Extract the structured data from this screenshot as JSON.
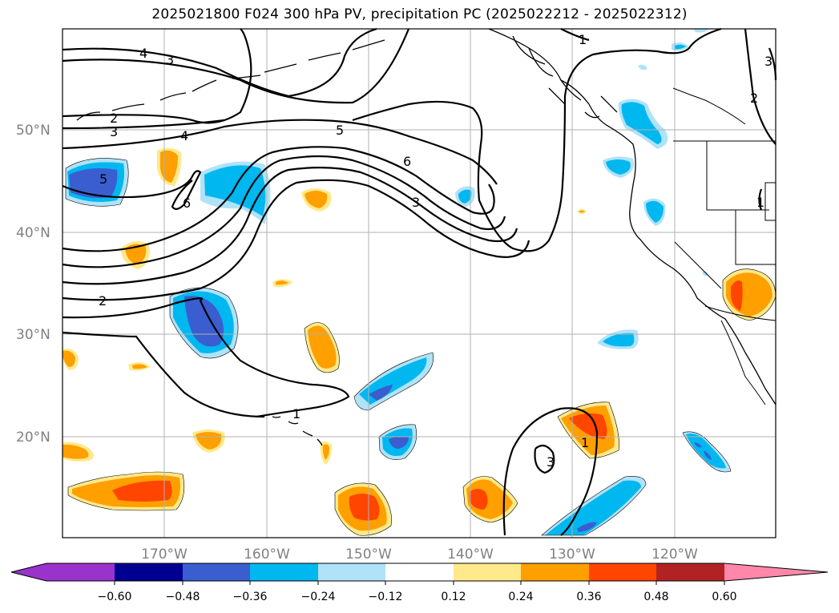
{
  "title": "2025021800 F024 300 hPa PV, precipitation PC (2025022212 - 2025022312)",
  "map": {
    "lat_labels": [
      "50°N",
      "40°N",
      "30°N",
      "20°N"
    ],
    "lon_labels": [
      "170°W",
      "160°W",
      "150°W",
      "140°W",
      "130°W",
      "120°W"
    ],
    "contour_labels": [
      "4",
      "3",
      "2",
      "3",
      "4",
      "5",
      "6",
      "5",
      "6",
      "3",
      "2",
      "1",
      "1",
      "1",
      "3",
      "3",
      "2",
      "1"
    ]
  },
  "colorbar": {
    "ticks": [
      "−0.60",
      "−0.48",
      "−0.36",
      "−0.24",
      "−0.12",
      "0.12",
      "0.24",
      "0.36",
      "0.48",
      "0.60"
    ],
    "colors": [
      "#9933cc",
      "#000090",
      "#3a5ecf",
      "#00b7f0",
      "#b0e2f8",
      "#ffffff",
      "#ffe98a",
      "#ff9f00",
      "#ff4500",
      "#b22222",
      "#ff88aa"
    ]
  }
}
